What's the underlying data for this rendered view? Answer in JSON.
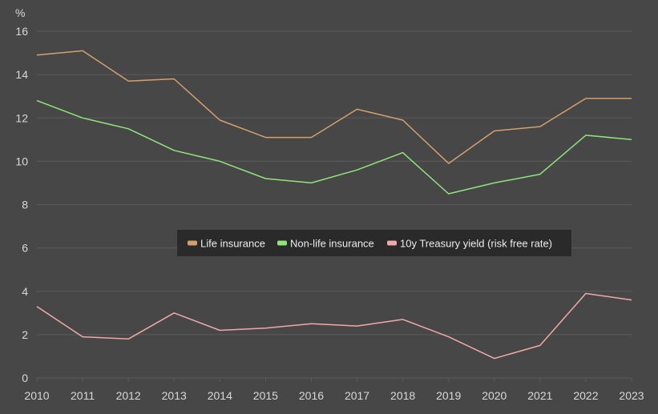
{
  "chart_data": {
    "type": "line",
    "y_unit_label": "%",
    "x": [
      2010,
      2011,
      2012,
      2013,
      2014,
      2015,
      2016,
      2017,
      2018,
      2019,
      2020,
      2021,
      2022,
      2023
    ],
    "ylim": [
      0,
      16
    ],
    "yticks": [
      0,
      2,
      4,
      6,
      8,
      10,
      12,
      14,
      16
    ],
    "grid": true,
    "legend_position": "center",
    "series": [
      {
        "name": "Life insurance",
        "color": "#d4a06a",
        "values": [
          14.9,
          15.1,
          13.7,
          13.8,
          11.9,
          11.1,
          11.1,
          12.4,
          11.9,
          9.9,
          11.4,
          11.6,
          12.9,
          12.9
        ]
      },
      {
        "name": "Non-life insurance",
        "color": "#8ee57a",
        "values": [
          12.8,
          12.0,
          11.5,
          10.5,
          10.0,
          9.2,
          9.0,
          9.6,
          10.4,
          8.5,
          9.0,
          9.4,
          11.2,
          11.0
        ]
      },
      {
        "name": "10y Treasury yield (risk free rate)",
        "color": "#f0a8a8",
        "values": [
          3.3,
          1.9,
          1.8,
          3.0,
          2.2,
          2.3,
          2.5,
          2.4,
          2.7,
          1.9,
          0.9,
          1.5,
          3.9,
          3.6
        ]
      }
    ]
  }
}
